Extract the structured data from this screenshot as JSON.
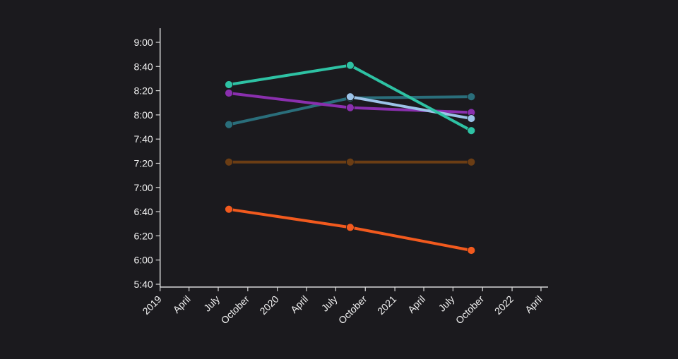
{
  "chart_data": {
    "type": "line",
    "title": "",
    "xlabel": "",
    "ylabel": "",
    "x_axis": {
      "type": "date",
      "range": [
        "2019-01-01",
        "2022-04-01"
      ],
      "ticks": [
        {
          "date": "2019-01-01",
          "label": "2019"
        },
        {
          "date": "2019-04-01",
          "label": "April"
        },
        {
          "date": "2019-07-01",
          "label": "July"
        },
        {
          "date": "2019-10-01",
          "label": "October"
        },
        {
          "date": "2020-01-01",
          "label": "2020"
        },
        {
          "date": "2020-04-01",
          "label": "April"
        },
        {
          "date": "2020-07-01",
          "label": "July"
        },
        {
          "date": "2020-10-01",
          "label": "October"
        },
        {
          "date": "2021-01-01",
          "label": "2021"
        },
        {
          "date": "2021-04-01",
          "label": "April"
        },
        {
          "date": "2021-07-01",
          "label": "July"
        },
        {
          "date": "2021-10-01",
          "label": "October"
        },
        {
          "date": "2022-01-01",
          "label": "2022"
        },
        {
          "date": "2022-04-01",
          "label": "April"
        }
      ]
    },
    "y_axis": {
      "type": "time-of-day",
      "range": [
        "5:40",
        "9:00"
      ],
      "ticks": [
        "5:40",
        "6:00",
        "6:20",
        "6:40",
        "7:00",
        "7:20",
        "7:40",
        "8:00",
        "8:20",
        "8:40",
        "9:00"
      ]
    },
    "grid": false,
    "legend": "none",
    "background": "#1b1a1e",
    "series": [
      {
        "color": "#6b3d14",
        "points": [
          {
            "x": "2019-08-03",
            "y": "7:21"
          },
          {
            "x": "2020-08-15",
            "y": "7:21"
          },
          {
            "x": "2021-08-27",
            "y": "7:21"
          }
        ]
      },
      {
        "color": "#f25a1e",
        "points": [
          {
            "x": "2019-08-03",
            "y": "6:42"
          },
          {
            "x": "2020-08-15",
            "y": "6:27"
          },
          {
            "x": "2021-08-27",
            "y": "6:08"
          }
        ]
      },
      {
        "color": "#2a6e7b",
        "points": [
          {
            "x": "2019-08-03",
            "y": "7:52"
          },
          {
            "x": "2020-08-15",
            "y": "8:14"
          },
          {
            "x": "2021-08-27",
            "y": "8:15"
          }
        ]
      },
      {
        "color": "#8a2fae",
        "points": [
          {
            "x": "2019-08-03",
            "y": "8:18"
          },
          {
            "x": "2020-08-15",
            "y": "8:06"
          },
          {
            "x": "2021-08-27",
            "y": "8:02"
          }
        ]
      },
      {
        "color": "#9cc3e8",
        "points": [
          {
            "x": "2020-08-15",
            "y": "8:15"
          },
          {
            "x": "2021-08-27",
            "y": "7:57"
          }
        ]
      },
      {
        "color": "#2ec2a4",
        "points": [
          {
            "x": "2019-08-03",
            "y": "8:25"
          },
          {
            "x": "2020-08-15",
            "y": "8:41"
          },
          {
            "x": "2021-08-27",
            "y": "7:47"
          }
        ]
      }
    ]
  }
}
